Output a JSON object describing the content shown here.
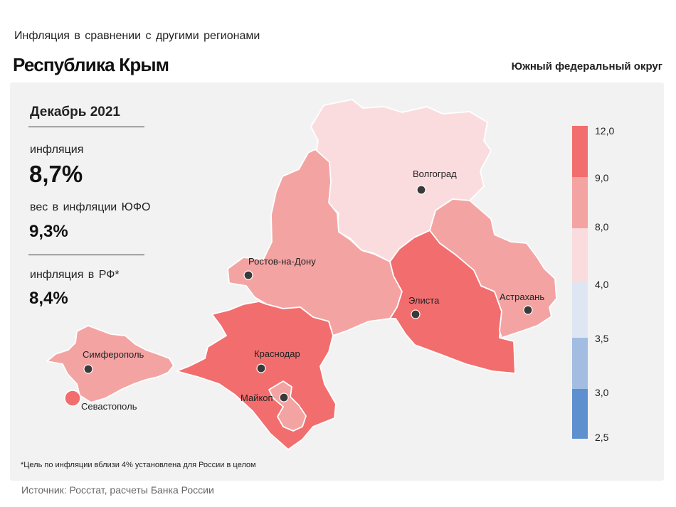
{
  "header": {
    "subtitle": "Инфляция в сравнении с другими регионами",
    "title": "Республика Крым",
    "district": "Южный федеральный округ"
  },
  "stats": {
    "period": "Декабрь 2021",
    "inflation_label": "инфляция",
    "inflation_value": "8,7%",
    "weight_label": "вес в инфляции ЮФО",
    "weight_value": "9,3%",
    "russia_label": "инфляция в РФ*",
    "russia_value": "8,4%"
  },
  "cities": {
    "volgograd": "Волгоград",
    "rostov": "Ростов-на-Дону",
    "elista": "Элиста",
    "astrakhan": "Астрахань",
    "krasnodar": "Краснодар",
    "maikop": "Майкоп",
    "simferopol": "Симферополь",
    "sevastopol": "Севастополь"
  },
  "legend": {
    "ticks": [
      "12,0",
      "9,0",
      "8,0",
      "4,0",
      "3,5",
      "3,0",
      "2,5"
    ],
    "bands": [
      {
        "range": "9,0–12,0",
        "color": "#f26d6d"
      },
      {
        "range": "8,0–9,0",
        "color": "#f4a3a3"
      },
      {
        "range": "4,0–8,0",
        "color": "#fadcdf"
      },
      {
        "range": "3,5–4,0",
        "color": "#dfe6f3"
      },
      {
        "range": "3,0–3,5",
        "color": "#a3bde2"
      },
      {
        "range": "2,5–3,0",
        "color": "#5e8fce"
      }
    ]
  },
  "regions": {
    "volgograd_color": "#fadcdf",
    "rostov_color": "#f4a3a3",
    "kalmykia_color": "#f26d6d",
    "astrakhan_color": "#f4a3a3",
    "krasnodar_color": "#f26d6d",
    "adygea_color": "#f4a3a3",
    "crimea_color": "#f4a3a3",
    "sevastopol_color": "#f26d6d"
  },
  "footnote": "*Цель по инфляции вблизи 4% установлена для России в целом",
  "source": "Источник: Росстат, расчеты Банка России"
}
